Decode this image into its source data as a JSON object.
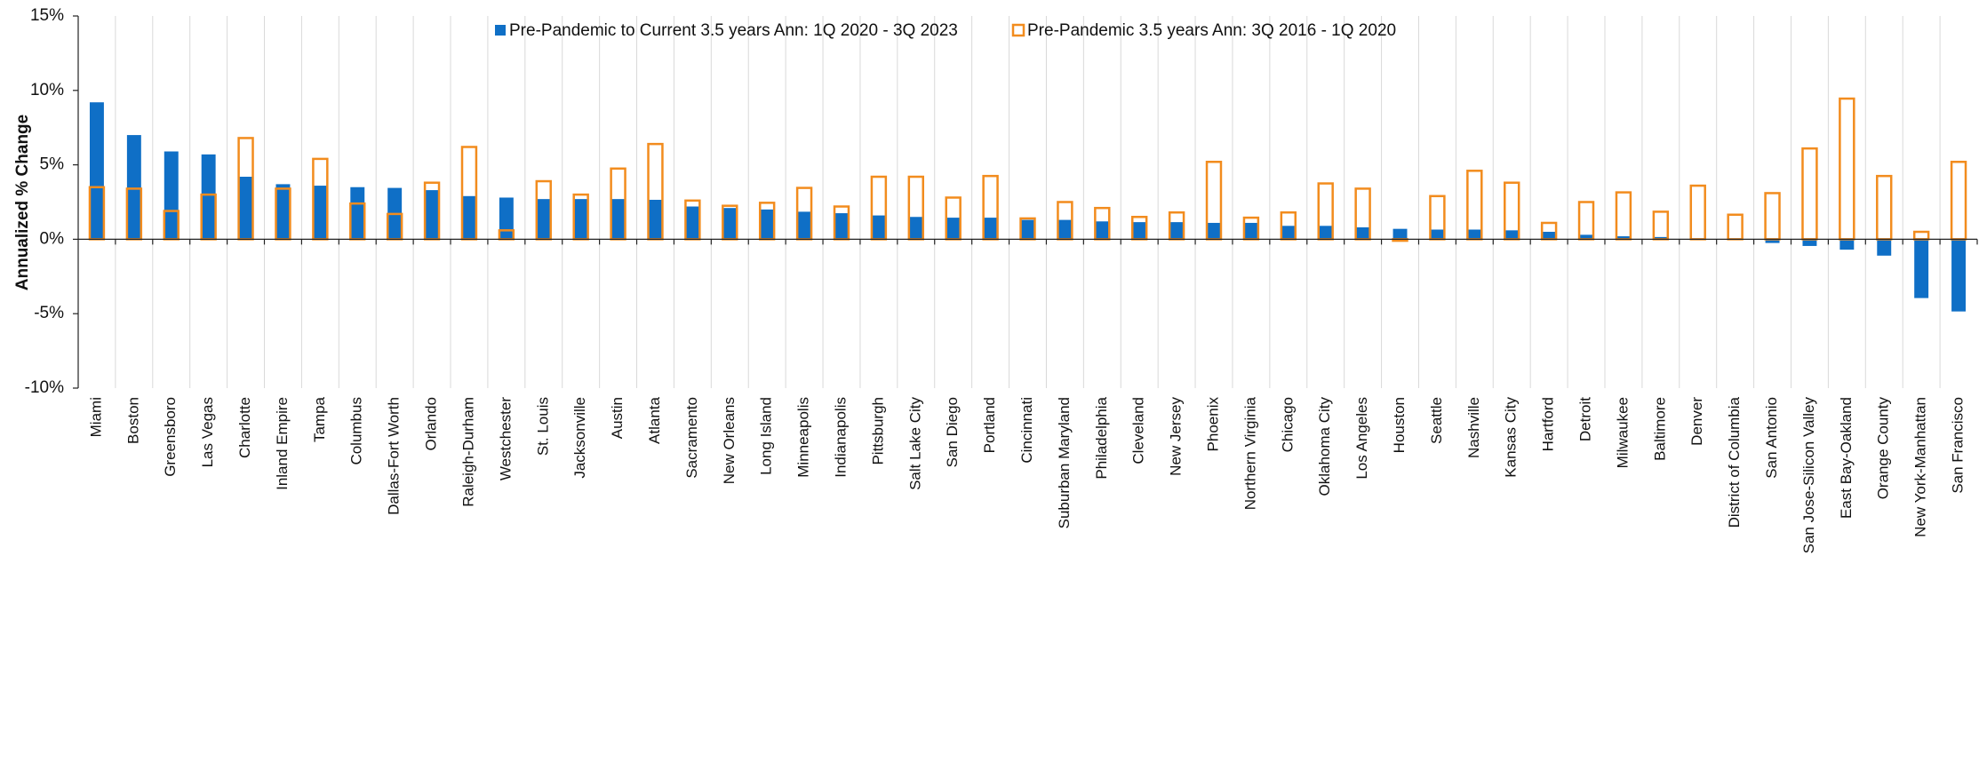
{
  "chart_data": {
    "type": "bar",
    "y_label": "Annualized % Change",
    "categories": [
      "Miami",
      "Boston",
      "Greensboro",
      "Las Vegas",
      "Charlotte",
      "Inland Empire",
      "Tampa",
      "Columbus",
      "Dallas-Fort Worth",
      "Orlando",
      "Raleigh-Durham",
      "Westchester",
      "St. Louis",
      "Jacksonville",
      "Austin",
      "Atlanta",
      "Sacramento",
      "New Orleans",
      "Long Island",
      "Minneapolis",
      "Indianapolis",
      "Pittsburgh",
      "Salt Lake City",
      "San Diego",
      "Portland",
      "Cincinnati",
      "Suburban Maryland",
      "Philadelphia",
      "Cleveland",
      "New Jersey",
      "Phoenix",
      "Northern Virginia",
      "Chicago",
      "Oklahoma City",
      "Los Angeles",
      "Houston",
      "Seattle",
      "Nashville",
      "Kansas City",
      "Hartford",
      "Detroit",
      "Milwaukee",
      "Baltimore",
      "Denver",
      "District of Columbia",
      "San Antonio",
      "San Jose-Silicon Valley",
      "East Bay-Oakland",
      "Orange County",
      "New York-Manhattan",
      "San Francisco"
    ],
    "series": [
      {
        "name": "Pre-Pandemic to Current 3.5 years Ann: 1Q 2020 - 3Q 2023",
        "color": "#0f6fc6",
        "style": "filled",
        "values": [
          9.2,
          7.0,
          5.9,
          5.7,
          4.2,
          3.7,
          3.6,
          3.5,
          3.45,
          3.3,
          2.9,
          2.8,
          2.7,
          2.7,
          2.7,
          2.65,
          2.2,
          2.1,
          2.0,
          1.85,
          1.75,
          1.6,
          1.5,
          1.45,
          1.45,
          1.3,
          1.3,
          1.2,
          1.15,
          1.15,
          1.1,
          1.1,
          0.9,
          0.9,
          0.8,
          0.7,
          0.65,
          0.65,
          0.6,
          0.5,
          0.3,
          0.2,
          0.15,
          0.05,
          0,
          -0.25,
          -0.45,
          -0.7,
          -1.1,
          -3.95,
          -4.85
        ]
      },
      {
        "name": "Pre-Pandemic 3.5 years Ann: 3Q 2016 - 1Q 2020",
        "color": "#f28c1e",
        "style": "outline",
        "values": [
          3.5,
          3.4,
          1.9,
          3.0,
          6.8,
          3.4,
          5.4,
          2.4,
          1.7,
          3.8,
          6.2,
          0.6,
          3.9,
          3.0,
          4.75,
          6.4,
          2.6,
          2.25,
          2.45,
          3.45,
          2.2,
          4.2,
          4.2,
          2.8,
          4.25,
          1.4,
          2.5,
          2.1,
          1.5,
          1.8,
          5.2,
          1.45,
          1.8,
          3.75,
          3.4,
          -0.1,
          2.9,
          4.6,
          3.8,
          1.1,
          2.5,
          3.15,
          1.85,
          3.6,
          1.65,
          3.1,
          6.1,
          9.45,
          4.25,
          0.5,
          5.2
        ]
      }
    ],
    "ylim": [
      -10,
      15
    ],
    "yticks": [
      {
        "value": -10,
        "label": "-10%"
      },
      {
        "value": -5,
        "label": "-5%"
      },
      {
        "value": 0,
        "label": "0%"
      },
      {
        "value": 5,
        "label": "5%"
      },
      {
        "value": 10,
        "label": "10%"
      },
      {
        "value": 15,
        "label": "15%"
      }
    ],
    "legend": "top"
  }
}
